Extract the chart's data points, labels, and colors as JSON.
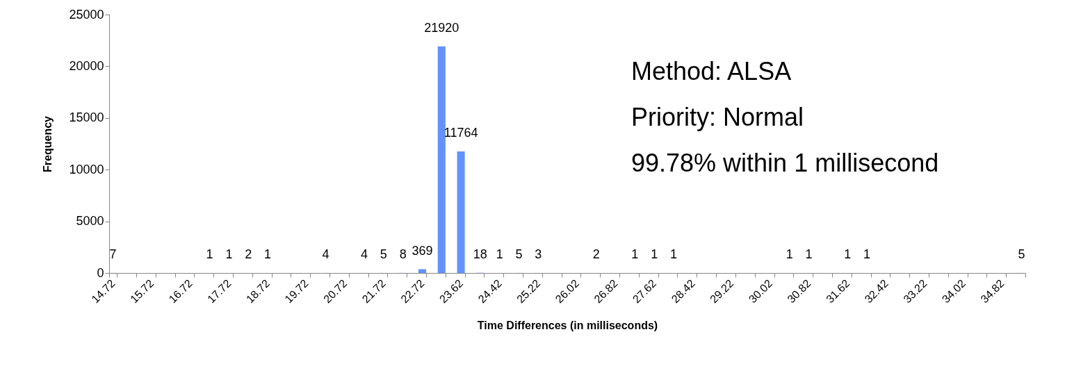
{
  "chart_data": {
    "type": "bar",
    "xlabel": "Time Differences (in milliseconds)",
    "ylabel": "Frequency",
    "annotations": [
      "Method: ALSA",
      "Priority: Normal",
      "99.78% within 1 millisecond"
    ],
    "categories": [
      "14.72",
      null,
      "15.72",
      null,
      "16.72",
      null,
      "17.72",
      null,
      "18.72",
      null,
      "19.72",
      null,
      "20.72",
      null,
      "21.72",
      null,
      "22.72",
      null,
      "23.62",
      null,
      "24.42",
      null,
      "25.22",
      null,
      "26.02",
      null,
      "26.82",
      null,
      "27.62",
      null,
      "28.42",
      null,
      "29.22",
      null,
      "30.02",
      null,
      "30.82",
      null,
      "31.62",
      null,
      "32.42",
      null,
      "33.22",
      null,
      "34.02",
      null,
      "34.82",
      null
    ],
    "values": [
      7,
      null,
      null,
      null,
      null,
      1,
      1,
      2,
      1,
      null,
      null,
      4,
      null,
      4,
      5,
      8,
      369,
      21920,
      11764,
      18,
      1,
      5,
      3,
      null,
      null,
      2,
      null,
      1,
      1,
      1,
      null,
      null,
      null,
      null,
      null,
      1,
      1,
      null,
      1,
      1,
      null,
      null,
      null,
      null,
      null,
      null,
      null,
      5
    ],
    "color": "#6492fc",
    "ylim": [
      0,
      25000
    ],
    "yticks": [
      0,
      5000,
      10000,
      15000,
      20000,
      25000
    ],
    "data_labels": true
  }
}
